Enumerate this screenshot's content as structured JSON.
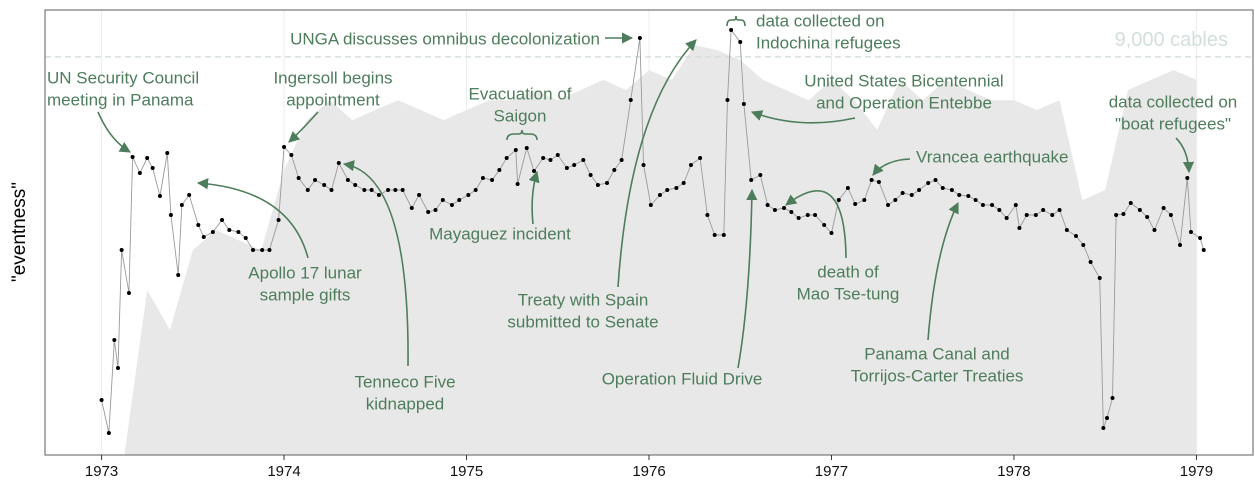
{
  "chart_data": {
    "type": "line",
    "y_label": "\"eventness\"",
    "xlim": [
      1972.69,
      1979.31
    ],
    "xticks": [
      1973,
      1974,
      1975,
      1976,
      1977,
      1978,
      1979
    ],
    "ylim": [
      0,
      445
    ],
    "y2lim": [
      0,
      10060
    ],
    "y2ticks": [
      {
        "value": 9000,
        "label": "9,000 cables"
      }
    ],
    "grid": true,
    "series": [
      {
        "type": "area",
        "axis": "y2",
        "color": "#e8e8e8",
        "x": [
          1973,
          1973.125,
          1973.25,
          1973.375,
          1973.5,
          1973.625,
          1973.75,
          1973.875,
          1974,
          1974.125,
          1974.25,
          1974.375,
          1974.5,
          1974.625,
          1974.75,
          1974.875,
          1975,
          1975.125,
          1975.25,
          1975.375,
          1975.5,
          1975.625,
          1975.75,
          1975.875,
          1976,
          1976.125,
          1976.25,
          1976.375,
          1976.5,
          1976.625,
          1976.75,
          1976.875,
          1977,
          1977.125,
          1977.25,
          1977.375,
          1977.5,
          1977.625,
          1977.75,
          1977.875,
          1978,
          1978.125,
          1978.25,
          1978.375,
          1978.5,
          1978.625,
          1978.75,
          1978.875,
          1979
        ],
        "values": [
          0,
          0,
          3730,
          2830,
          4630,
          5090,
          4860,
          4630,
          6440,
          7570,
          8020,
          7570,
          7800,
          8020,
          7800,
          7570,
          7800,
          8020,
          8020,
          8250,
          8020,
          8250,
          8480,
          8250,
          8700,
          8480,
          9270,
          9150,
          8930,
          8480,
          8250,
          8020,
          8480,
          8020,
          7350,
          8480,
          8020,
          8480,
          8250,
          8020,
          8020,
          7800,
          8020,
          5760,
          5990,
          8250,
          8480,
          8700,
          8480
        ]
      },
      {
        "type": "points",
        "color": "#000000",
        "line_color": "#9a9a9a",
        "x": [
          1973.0,
          1973.04,
          1973.07,
          1973.09,
          1973.11,
          1973.15,
          1973.17,
          1973.21,
          1973.25,
          1973.28,
          1973.32,
          1973.36,
          1973.38,
          1973.42,
          1973.44,
          1973.48,
          1973.53,
          1973.56,
          1973.61,
          1973.66,
          1973.7,
          1973.75,
          1973.79,
          1973.83,
          1973.88,
          1973.92,
          1973.97,
          1974.0,
          1974.04,
          1974.08,
          1974.13,
          1974.17,
          1974.22,
          1974.26,
          1974.3,
          1974.35,
          1974.39,
          1974.44,
          1974.48,
          1974.52,
          1974.57,
          1974.61,
          1974.65,
          1974.7,
          1974.74,
          1974.79,
          1974.83,
          1974.87,
          1974.92,
          1974.96,
          1975.01,
          1975.05,
          1975.09,
          1975.14,
          1975.18,
          1975.22,
          1975.27,
          1975.28,
          1975.33,
          1975.37,
          1975.42,
          1975.46,
          1975.5,
          1975.55,
          1975.59,
          1975.64,
          1975.68,
          1975.72,
          1975.77,
          1975.81,
          1975.85,
          1975.9,
          1975.95,
          1975.97,
          1976.01,
          1976.06,
          1976.1,
          1976.15,
          1976.19,
          1976.23,
          1976.28,
          1976.32,
          1976.36,
          1976.41,
          1976.43,
          1976.45,
          1976.5,
          1976.52,
          1976.56,
          1976.61,
          1976.65,
          1976.69,
          1976.74,
          1976.78,
          1976.82,
          1976.87,
          1976.91,
          1976.96,
          1977.0,
          1977.04,
          1977.09,
          1977.13,
          1977.18,
          1977.22,
          1977.26,
          1977.31,
          1977.35,
          1977.39,
          1977.44,
          1977.48,
          1977.53,
          1977.57,
          1977.61,
          1977.66,
          1977.7,
          1977.75,
          1977.79,
          1977.83,
          1977.88,
          1977.92,
          1977.96,
          1978.01,
          1978.03,
          1978.07,
          1978.12,
          1978.16,
          1978.21,
          1978.25,
          1978.29,
          1978.34,
          1978.38,
          1978.42,
          1978.47,
          1978.49,
          1978.51,
          1978.54,
          1978.56,
          1978.6,
          1978.64,
          1978.69,
          1978.73,
          1978.77,
          1978.82,
          1978.86,
          1978.91,
          1978.95,
          1978.97,
          1979.02,
          1979.04
        ],
        "values": [
          55,
          22,
          115,
          87,
          205,
          162,
          298,
          282,
          297,
          287,
          259,
          302,
          240,
          180,
          250,
          260,
          230,
          218,
          223,
          235,
          225,
          223,
          217,
          205,
          205,
          205,
          235,
          308,
          300,
          277,
          265,
          275,
          270,
          265,
          292,
          275,
          270,
          265,
          265,
          260,
          265,
          265,
          265,
          247,
          260,
          243,
          245,
          255,
          250,
          255,
          260,
          265,
          277,
          275,
          285,
          297,
          305,
          271,
          307,
          284,
          297,
          295,
          300,
          287,
          290,
          295,
          280,
          270,
          272,
          285,
          295,
          355,
          417,
          290,
          250,
          260,
          265,
          267,
          272,
          290,
          297,
          240,
          220,
          220,
          355,
          425,
          413,
          351,
          275,
          280,
          250,
          245,
          247,
          243,
          237,
          240,
          240,
          230,
          222,
          255,
          267,
          251,
          255,
          275,
          273,
          250,
          255,
          262,
          260,
          265,
          272,
          275,
          267,
          265,
          260,
          259,
          255,
          250,
          250,
          245,
          237,
          250,
          227,
          240,
          240,
          245,
          240,
          245,
          225,
          219,
          210,
          193,
          177,
          27,
          37,
          57,
          240,
          241,
          252,
          245,
          238,
          225,
          247,
          240,
          210,
          277,
          223,
          217,
          205
        ]
      }
    ],
    "annotations": [
      {
        "lines": [
          "UN Security Council",
          "meeting in Panama"
        ]
      },
      {
        "lines": [
          "Ingersoll begins",
          "appointment"
        ]
      },
      {
        "lines": [
          "Evacuation of",
          "Saigon"
        ]
      },
      {
        "lines": [
          "UNGA discusses omnibus decolonization"
        ]
      },
      {
        "lines": [
          "data collected on",
          "Indochina refugees"
        ]
      },
      {
        "lines": [
          "United States Bicentennial",
          "and Operation Entebbe"
        ]
      },
      {
        "lines": [
          "data collected on",
          "\"boat refugees\""
        ]
      },
      {
        "lines": [
          "Vrancea earthquake"
        ]
      },
      {
        "lines": [
          "Apollo 17 lunar",
          "sample gifts"
        ]
      },
      {
        "lines": [
          "Mayaguez incident"
        ]
      },
      {
        "lines": [
          "Tenneco Five",
          "kidnapped"
        ]
      },
      {
        "lines": [
          "Treaty with Spain",
          "submitted to Senate"
        ]
      },
      {
        "lines": [
          "Operation Fluid Drive"
        ]
      },
      {
        "lines": [
          "death of",
          "Mao Tse-tung"
        ]
      },
      {
        "lines": [
          "Panama Canal and",
          "Torrijos-Carter Treaties"
        ]
      }
    ]
  }
}
